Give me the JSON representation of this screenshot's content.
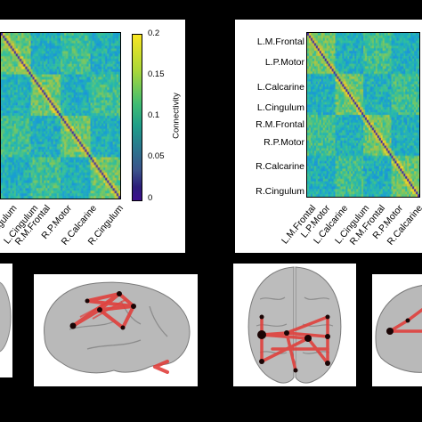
{
  "left_matrix": {
    "x_labels": [
      "Cingulum",
      "L.Cingulum",
      "R.M.Frontal",
      "R.P.Motor",
      "R.Calcarine",
      "R.Cingulum"
    ]
  },
  "colorbar": {
    "label": "Connectivity",
    "ticks": [
      "0.2",
      "0.15",
      "0.1",
      "0.05",
      "0"
    ]
  },
  "right_matrix": {
    "y_labels": [
      "L.M.Frontal",
      "L.P.Motor",
      "L.Calcarine",
      "L.Cingulum",
      "R.M.Frontal",
      "R.P.Motor",
      "R.Calcarine",
      "R.Cingulum"
    ],
    "x_labels": [
      "L.M.Frontal",
      "L.P.Motor",
      "L.Calcarine",
      "L.Cingulum",
      "R.M.Frontal",
      "R.P.Motor",
      "R.Calcarine"
    ]
  },
  "colors": {
    "background": "#000000",
    "connection": "#e0403c",
    "node": "#1a0505",
    "brain": "#b9b9b9"
  }
}
